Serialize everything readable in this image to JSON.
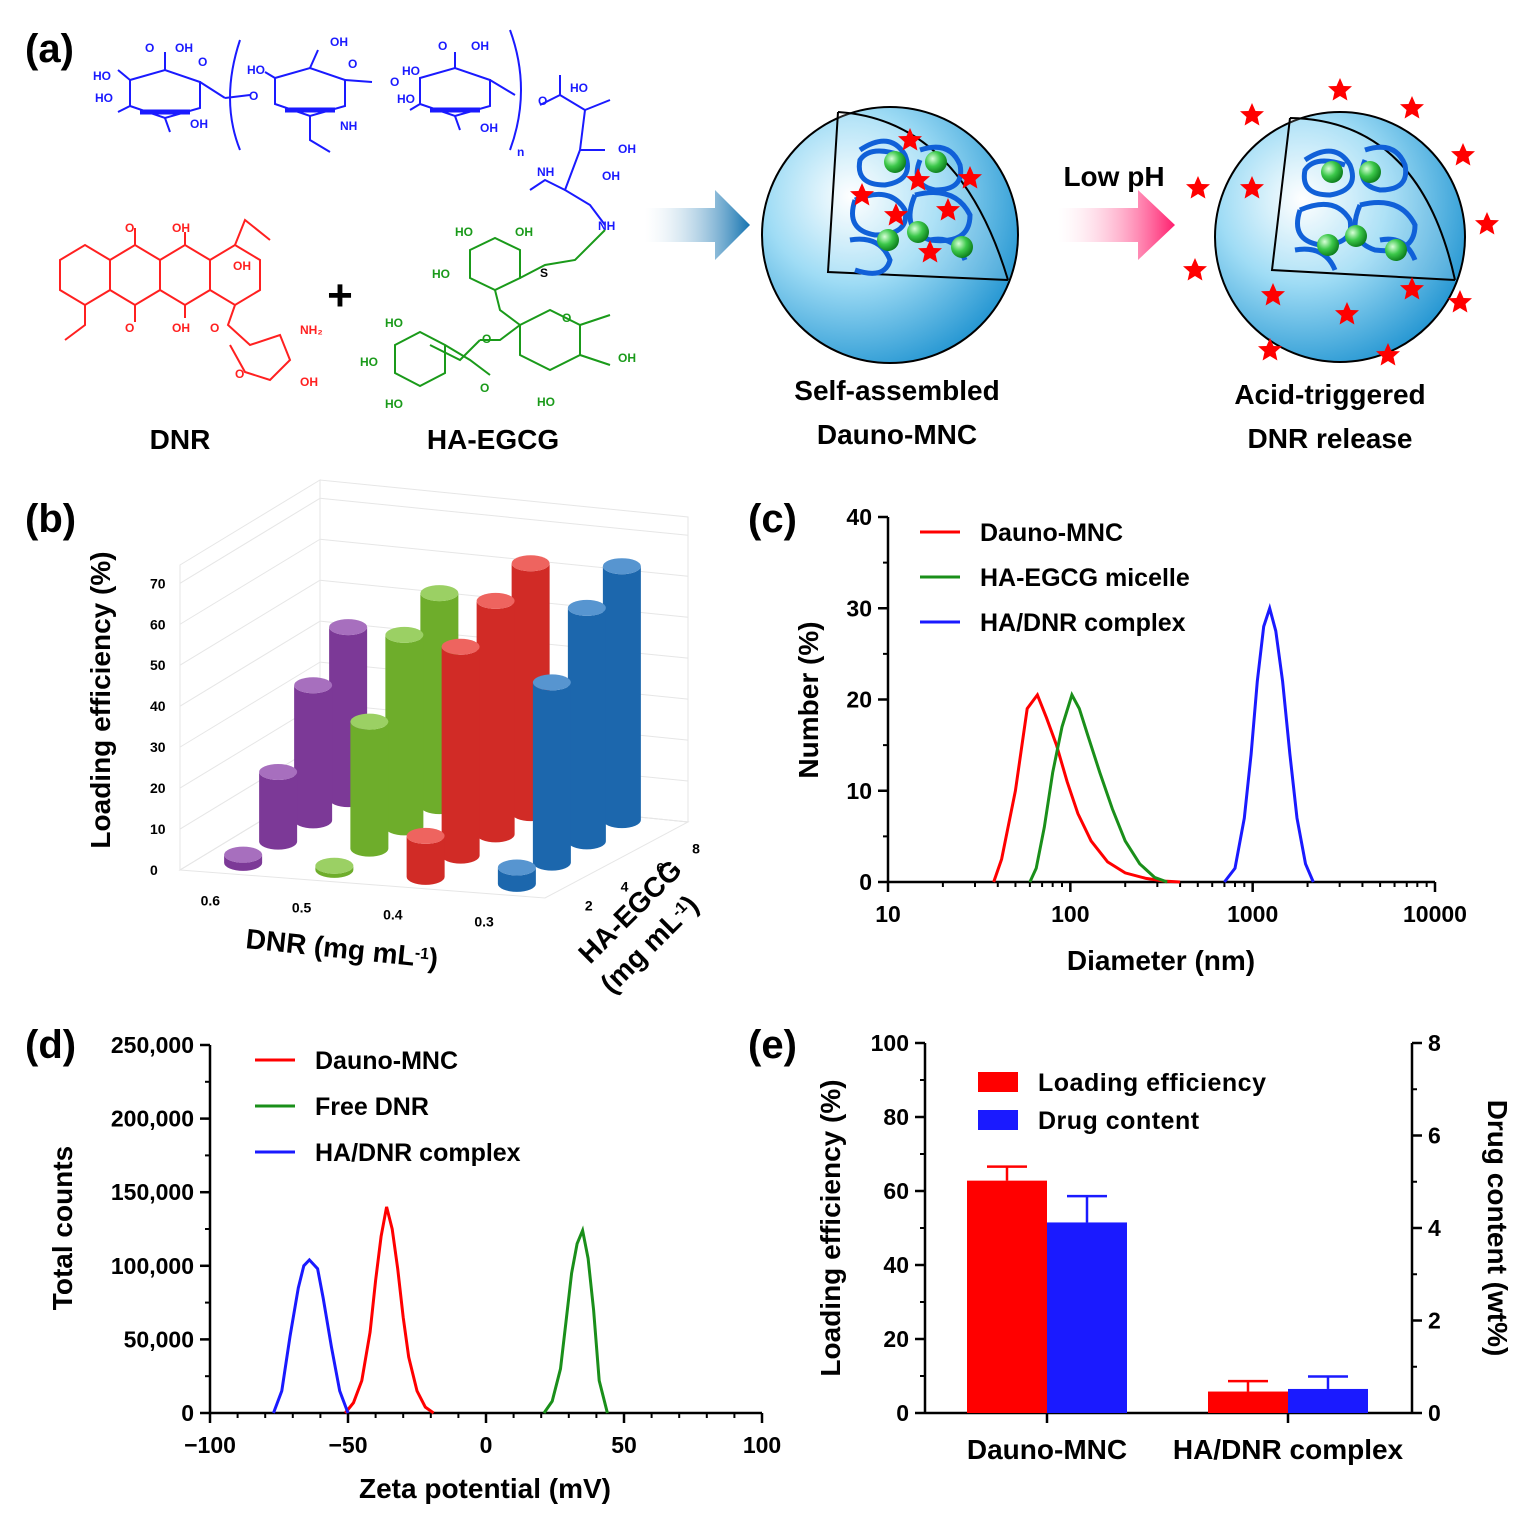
{
  "panels": {
    "a": "(a)",
    "b": "(b)",
    "c": "(c)",
    "d": "(d)",
    "e": "(e)"
  },
  "scheme": {
    "dnr_label": "DNR",
    "plus": "+",
    "ha_egcg_label": "HA-EGCG",
    "arrow_label": "Low pH",
    "nanocomplex_line1": "Self-assembled",
    "nanocomplex_line2": "Dauno-MNC",
    "release_line1": "Acid-triggered",
    "release_line2": "DNR release",
    "chem_labels": {
      "oh": "OH",
      "ho": "HO",
      "o": "O",
      "nh": "NH",
      "n": "n",
      "s": "S",
      "nh2": "NH₂"
    },
    "colors": {
      "ha": "#1a1aff",
      "dnr": "#ff2020",
      "egcg": "#1a9a1a",
      "star": "#ff0000"
    }
  },
  "chart_data": [
    {
      "panel": "b",
      "type": "bar3d",
      "ylabel": "Loading efficiency (%)",
      "xlabel": "DNR (mg mL⁻¹)",
      "xlabel_main": "DNR (mg mL",
      "xlabel_sup": "-1",
      "xlabel_close": ")",
      "zlabel_line1": "HA-EGCG",
      "zlabel_line2_main": "(mg mL",
      "zlabel_line2_sup": "-1",
      "zlabel_line2_close": ")",
      "x_categories": [
        "0.6",
        "0.5",
        "0.4",
        "0.3"
      ],
      "z_categories": [
        "2",
        "4",
        "6",
        "8"
      ],
      "yticks": [
        "0",
        "10",
        "20",
        "30",
        "40",
        "50",
        "60",
        "70"
      ],
      "ylim": [
        0,
        70
      ],
      "series": [
        {
          "dnr": "0.6",
          "color": "#8a3fa8",
          "values": [
            2,
            17,
            33,
            42
          ]
        },
        {
          "dnr": "0.5",
          "color": "#7ac030",
          "values": [
            1,
            31,
            47,
            52
          ]
        },
        {
          "dnr": "0.4",
          "color": "#e8302a",
          "values": [
            10,
            51,
            57,
            61
          ]
        },
        {
          "dnr": "0.3",
          "color": "#1f72c0",
          "values": [
            4,
            44,
            57,
            62
          ]
        }
      ]
    },
    {
      "panel": "c",
      "type": "line",
      "xlabel": "Diameter (nm)",
      "ylabel": "Number (%)",
      "xscale": "log",
      "xlim": [
        10,
        10000
      ],
      "ylim": [
        0,
        40
      ],
      "xticks": [
        "10",
        "100",
        "1000",
        "10000"
      ],
      "yticks": [
        "0",
        "10",
        "20",
        "30",
        "40"
      ],
      "legend_position": "top-left",
      "series": [
        {
          "name": "Dauno-MNC",
          "color": "#ff0000",
          "x": [
            38,
            42,
            50,
            58,
            66,
            74,
            84,
            96,
            110,
            130,
            160,
            200,
            260,
            330,
            400
          ],
          "y": [
            0,
            2.5,
            10,
            19,
            20.5,
            18,
            15,
            11,
            7.5,
            4.5,
            2.2,
            1.0,
            0.4,
            0.1,
            0
          ]
        },
        {
          "name": "HA-EGCG micelle",
          "color": "#1a8f1a",
          "x": [
            60,
            65,
            72,
            80,
            90,
            102,
            112,
            125,
            145,
            170,
            200,
            240,
            290,
            340
          ],
          "y": [
            0,
            1.5,
            6,
            12,
            17,
            20.5,
            19,
            16,
            12,
            8,
            4.5,
            2,
            0.5,
            0
          ]
        },
        {
          "name": "HA/DNR complex",
          "color": "#1a1aff",
          "x": [
            700,
            800,
            900,
            980,
            1060,
            1150,
            1240,
            1340,
            1460,
            1600,
            1750,
            1950,
            2150
          ],
          "y": [
            0,
            1.5,
            7,
            14,
            22,
            28,
            30,
            27.5,
            22,
            14,
            7,
            2,
            0
          ]
        }
      ]
    },
    {
      "panel": "d",
      "type": "line",
      "xlabel": "Zeta potential (mV)",
      "ylabel": "Total counts",
      "xlim": [
        -100,
        100
      ],
      "ylim": [
        0,
        250000
      ],
      "xticks": [
        "−100",
        "−50",
        "0",
        "50",
        "100"
      ],
      "yticks": [
        "0",
        "50,000",
        "100,000",
        "150,000",
        "200,000",
        "250,000"
      ],
      "legend_position": "top-left",
      "series": [
        {
          "name": "Dauno-MNC",
          "color": "#ff0000",
          "x": [
            -51,
            -48,
            -45,
            -42,
            -40,
            -38,
            -36,
            -34,
            -32,
            -30,
            -28,
            -25,
            -22,
            -19
          ],
          "y": [
            0,
            7000,
            22000,
            55000,
            90000,
            120000,
            140000,
            125000,
            98000,
            65000,
            38000,
            15000,
            4000,
            0
          ]
        },
        {
          "name": "Free DNR",
          "color": "#1a8f1a",
          "x": [
            21,
            24,
            27,
            29,
            31,
            33,
            35,
            37,
            39,
            41,
            44
          ],
          "y": [
            0,
            8000,
            30000,
            62000,
            95000,
            115000,
            124000,
            105000,
            70000,
            22000,
            0
          ]
        },
        {
          "name": "HA/DNR complex",
          "color": "#1a1aff",
          "x": [
            -77,
            -74,
            -71,
            -68,
            -66,
            -64,
            -61,
            -59,
            -56,
            -53,
            -50
          ],
          "y": [
            0,
            15000,
            52000,
            85000,
            100000,
            104000,
            98000,
            78000,
            45000,
            15000,
            0
          ]
        }
      ]
    },
    {
      "panel": "e",
      "type": "bar",
      "categories": [
        "Dauno-MNC",
        "HA/DNR complex"
      ],
      "ylabel": "Loading efficiency (%)",
      "y2label": "Drug content (wt%)",
      "ylim": [
        0,
        100
      ],
      "y2lim": [
        0,
        8
      ],
      "yticks": [
        "0",
        "20",
        "40",
        "60",
        "80",
        "100"
      ],
      "y2ticks": [
        "0",
        "2",
        "4",
        "6",
        "8"
      ],
      "legend_position": "top-left",
      "series": [
        {
          "name": "Loading efficiency",
          "color": "#ff0000",
          "axis": "left",
          "values": [
            62.8,
            5.8
          ],
          "errors": [
            3.8,
            2.8
          ]
        },
        {
          "name": "Drug content",
          "color": "#1a1aff",
          "axis": "right",
          "values": [
            4.12,
            0.52
          ],
          "errors": [
            0.57,
            0.27
          ]
        }
      ]
    }
  ]
}
